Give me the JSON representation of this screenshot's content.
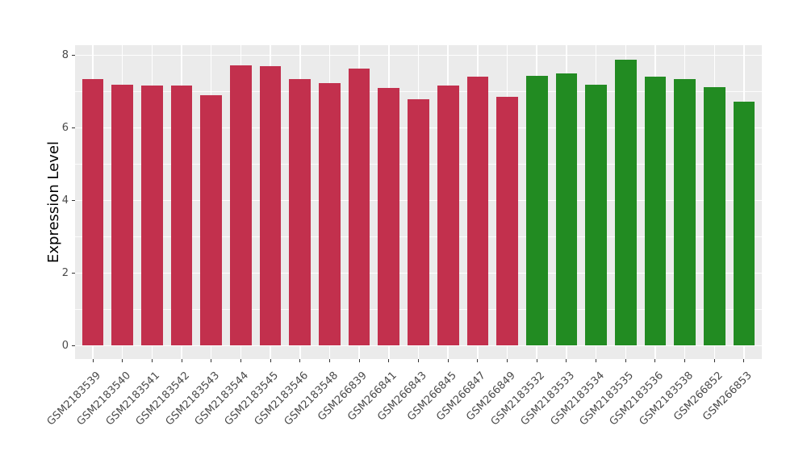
{
  "chart_data": {
    "type": "bar",
    "title": "",
    "xlabel": "",
    "ylabel": "Expression Level",
    "ylim": [
      -0.39,
      8.26
    ],
    "yticks": [
      0,
      2,
      4,
      6,
      8
    ],
    "grid": {
      "major": [
        0,
        2,
        4,
        6,
        8
      ],
      "minor": [
        1,
        3,
        5,
        7
      ],
      "vertical": "one per category",
      "visible": true
    },
    "legend": "none",
    "categories": [
      "GSM2183539",
      "GSM2183540",
      "GSM2183541",
      "GSM2183542",
      "GSM2183543",
      "GSM2183544",
      "GSM2183545",
      "GSM2183546",
      "GSM2183548",
      "GSM266839",
      "GSM266841",
      "GSM266843",
      "GSM266845",
      "GSM266847",
      "GSM266849",
      "GSM2183532",
      "GSM2183533",
      "GSM2183534",
      "GSM2183535",
      "GSM2183536",
      "GSM2183538",
      "GSM266852",
      "GSM266853"
    ],
    "values": [
      7.35,
      7.18,
      7.17,
      7.17,
      6.9,
      7.72,
      7.7,
      7.35,
      7.22,
      7.63,
      7.09,
      6.78,
      7.17,
      7.41,
      6.85,
      7.44,
      7.5,
      7.18,
      7.87,
      7.41,
      7.33,
      7.11,
      6.72
    ],
    "bar_colors": [
      "#C2304D",
      "#C2304D",
      "#C2304D",
      "#C2304D",
      "#C2304D",
      "#C2304D",
      "#C2304D",
      "#C2304D",
      "#C2304D",
      "#C2304D",
      "#C2304D",
      "#C2304D",
      "#C2304D",
      "#C2304D",
      "#C2304D",
      "#228B22",
      "#228B22",
      "#228B22",
      "#228B22",
      "#228B22",
      "#228B22",
      "#228B22",
      "#228B22"
    ],
    "colors": {
      "panel_background": "#EBEBEB",
      "grid": "#FFFFFF",
      "axis_text": "#4A4A4A",
      "axis_title": "#000000",
      "tick_mark": "#333333",
      "group_red": "#C2304D",
      "group_green": "#228B22"
    }
  }
}
